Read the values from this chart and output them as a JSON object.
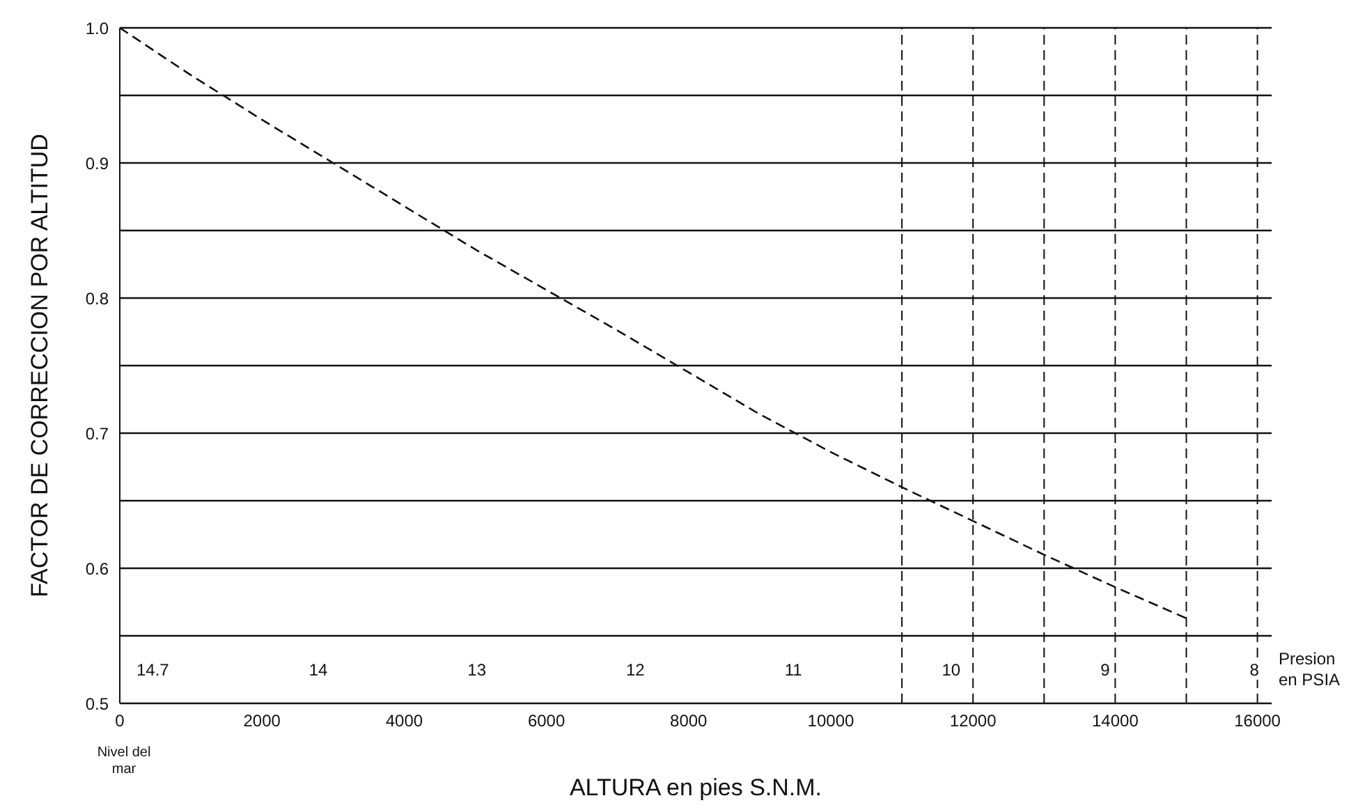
{
  "chart_data": {
    "type": "line",
    "xlabel": "ALTURA en pies S.N.M.",
    "ylabel": "FACTOR DE CORRECCION POR ALTITUD",
    "x": [
      0,
      1000,
      2000,
      3000,
      4000,
      5000,
      6000,
      7000,
      8000,
      9000,
      10000,
      11000,
      12000,
      13000,
      14000,
      15000
    ],
    "series": [
      {
        "color": "#111111",
        "values": [
          1.0,
          0.965,
          0.932,
          0.9,
          0.868,
          0.836,
          0.806,
          0.776,
          0.745,
          0.714,
          0.686,
          0.66,
          0.635,
          0.61,
          0.586,
          0.563
        ]
      }
    ],
    "xlim": [
      0,
      16200
    ],
    "xticks": [
      0,
      2000,
      4000,
      6000,
      8000,
      10000,
      12000,
      14000,
      16000
    ],
    "ylim": [
      0.5,
      1.0
    ],
    "yticks": [
      0.5,
      {
        "value": 0.55,
        "label": null
      },
      0.6,
      {
        "value": 0.65,
        "label": null
      },
      0.7,
      {
        "value": 0.75,
        "label": null
      },
      0.8,
      {
        "value": 0.85,
        "label": null
      },
      0.9,
      {
        "value": 0.95,
        "label": null
      },
      {
        "value": 1,
        "label": "1.0"
      }
    ],
    "ref_lines": [
      {
        "axis": "x",
        "value": 11000,
        "line_style": "dashed",
        "color": "#111111"
      },
      {
        "axis": "x",
        "value": 12000,
        "line_style": "dashed",
        "color": "#111111"
      },
      {
        "axis": "x",
        "value": 13000,
        "line_style": "dashed",
        "color": "#111111"
      },
      {
        "axis": "x",
        "value": 14000,
        "line_style": "dashed",
        "color": "#111111"
      },
      {
        "axis": "x",
        "value": 15000,
        "line_style": "dashed",
        "color": "#111111"
      },
      {
        "axis": "x",
        "value": 16000,
        "line_style": "dashed",
        "color": "#111111"
      }
    ],
    "annotations": [
      "Nivel del mar",
      "14.7",
      "14",
      "13",
      "12",
      "11",
      "10",
      "9",
      "8",
      "Presion en PSIA"
    ],
    "grid": "y",
    "marker": "none",
    "line_style": "dashed"
  }
}
